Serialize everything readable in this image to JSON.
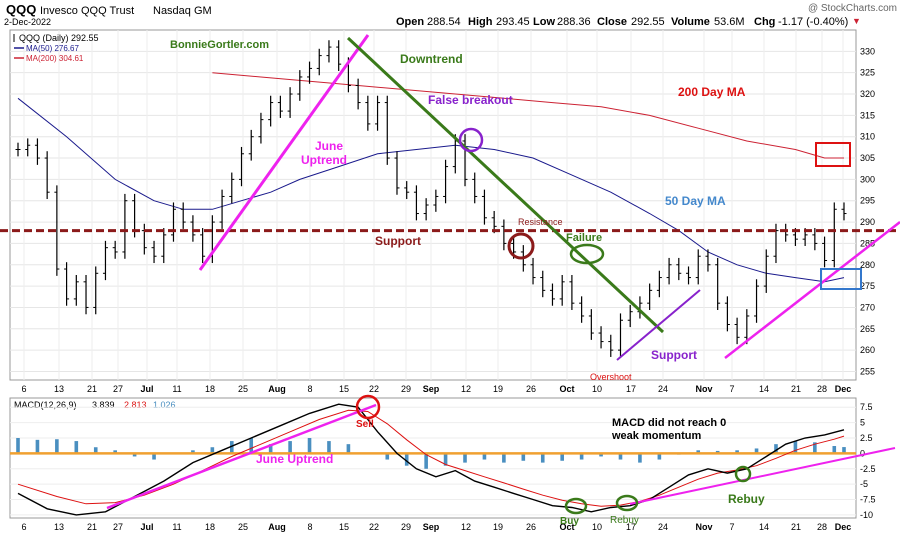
{
  "header": {
    "ticker": "QQQ",
    "name": "Invesco QQQ Trust",
    "exchange": "Nasdaq GM",
    "date": "2-Dec-2022",
    "open_label": "Open",
    "open": "288.54",
    "high_label": "High",
    "high": "293.45",
    "low_label": "Low",
    "low": "288.36",
    "close_label": "Close",
    "close": "292.55",
    "volume_label": "Volume",
    "volume": "53.6M",
    "chg_label": "Chg",
    "chg": "-1.17 (-0.40%)",
    "chg_arrow": "▼",
    "watermark": "@ StockCharts.com"
  },
  "legend": {
    "price": "QQQ (Daily) 292.55",
    "ma50": "MA(50) 276.67",
    "ma200": "MA(200) 304.61"
  },
  "annotations": {
    "brand": "BonnieGortler.com",
    "downtrend": "Downtrend",
    "false_breakout": "False breakout",
    "ma200": "200 Day MA",
    "june_uptrend_1": "June",
    "june_uptrend_2": "Uptrend",
    "ma50": "50 Day MA",
    "resistance": "Resistance",
    "support_left": "Support",
    "failure": "Failure",
    "support_right": "Support",
    "overshoot": "Overshoot",
    "sell": "Sell",
    "macd_note_1": "MACD did not reach 0",
    "macd_note_2": "weak momentum",
    "june_uptrend_macd": "June Uptrend",
    "buy": "Buy",
    "rebuy_1": "Rebuy",
    "rebuy_2": "Rebuy"
  },
  "macd_legend": {
    "name": "MACD(12,26,9)",
    "macd": "3.839",
    "signal": "2.813",
    "hist": "1.026"
  },
  "colors": {
    "price_bar": "#000000",
    "ma50": "#1a1a8c",
    "ma200": "#cc2233",
    "support_resistance": "#8b1a1a",
    "uptrend": "#ee22ee",
    "downtrend": "#3a7a1a",
    "false_breakout": "#8822cc",
    "ma50_label": "#4488cc",
    "ma200_label": "#dd1111",
    "histogram": "#4a8fc0",
    "zero_line": "#f0a030",
    "macd_line": "#000000",
    "signal_line": "#dd1111"
  },
  "chart_data": [
    {
      "type": "line",
      "title": "QQQ Invesco QQQ Trust Nasdaq GM",
      "ylim": [
        253,
        335
      ],
      "y_ticks": [
        255,
        260,
        265,
        270,
        275,
        280,
        285,
        290,
        295,
        300,
        305,
        310,
        315,
        320,
        325,
        330
      ],
      "x_ticks": [
        "6",
        "13",
        "21",
        "27",
        "Jul",
        "11",
        "18",
        "25",
        "Aug",
        "8",
        "15",
        "22",
        "29",
        "Sep",
        "12",
        "19",
        "26",
        "Oct",
        "10",
        "17",
        "24",
        "Nov",
        "7",
        "14",
        "21",
        "28",
        "Dec"
      ],
      "support_resistance_level": 288,
      "series": [
        {
          "name": "QQQ (Daily)",
          "points": [
            [
              0,
              307
            ],
            [
              2,
              308
            ],
            [
              4,
              305
            ],
            [
              6,
              297
            ],
            [
              8,
              279
            ],
            [
              10,
              272
            ],
            [
              12,
              276
            ],
            [
              14,
              270
            ],
            [
              16,
              278
            ],
            [
              18,
              284
            ],
            [
              20,
              283
            ],
            [
              22,
              295
            ],
            [
              24,
              288
            ],
            [
              26,
              284
            ],
            [
              28,
              282
            ],
            [
              30,
              287
            ],
            [
              32,
              293
            ],
            [
              34,
              290
            ],
            [
              36,
              287
            ],
            [
              38,
              282
            ],
            [
              40,
              290
            ],
            [
              42,
              296
            ],
            [
              44,
              300
            ],
            [
              46,
              306
            ],
            [
              48,
              310
            ],
            [
              50,
              314
            ],
            [
              52,
              318
            ],
            [
              54,
              316
            ],
            [
              56,
              320
            ],
            [
              58,
              324
            ],
            [
              60,
              326
            ],
            [
              62,
              329
            ],
            [
              64,
              331
            ],
            [
              66,
              327
            ],
            [
              68,
              322
            ],
            [
              70,
              318
            ],
            [
              72,
              313
            ],
            [
              74,
              318
            ],
            [
              76,
              305
            ],
            [
              78,
              298
            ],
            [
              80,
              297
            ],
            [
              82,
              292
            ],
            [
              84,
              294
            ],
            [
              86,
              296
            ],
            [
              88,
              303
            ],
            [
              90,
              309
            ],
            [
              92,
              300
            ],
            [
              94,
              296
            ],
            [
              96,
              291
            ],
            [
              98,
              289
            ],
            [
              100,
              285
            ],
            [
              102,
              283
            ],
            [
              104,
              280
            ],
            [
              106,
              277
            ],
            [
              108,
              274
            ],
            [
              110,
              272
            ],
            [
              112,
              276
            ],
            [
              114,
              271
            ],
            [
              116,
              268
            ],
            [
              118,
              264
            ],
            [
              120,
              262
            ],
            [
              122,
              260
            ],
            [
              124,
              267
            ],
            [
              126,
              269
            ],
            [
              128,
              271
            ],
            [
              130,
              274
            ],
            [
              132,
              277
            ],
            [
              134,
              280
            ],
            [
              136,
              278
            ],
            [
              138,
              277
            ],
            [
              140,
              282
            ],
            [
              142,
              280
            ],
            [
              144,
              271
            ],
            [
              146,
              266
            ],
            [
              148,
              263
            ],
            [
              150,
              268
            ],
            [
              152,
              275
            ],
            [
              154,
              282
            ],
            [
              156,
              288
            ],
            [
              158,
              287
            ],
            [
              160,
              286
            ],
            [
              162,
              287
            ],
            [
              164,
              285
            ],
            [
              166,
              281
            ],
            [
              168,
              293
            ],
            [
              170,
              292
            ]
          ]
        },
        {
          "name": "MA(50)",
          "points": [
            [
              0,
              319
            ],
            [
              10,
              310
            ],
            [
              20,
              300
            ],
            [
              28,
              295
            ],
            [
              34,
              293
            ],
            [
              40,
              293
            ],
            [
              46,
              295
            ],
            [
              52,
              297
            ],
            [
              58,
              300
            ],
            [
              66,
              303
            ],
            [
              74,
              306
            ],
            [
              82,
              307
            ],
            [
              90,
              308
            ],
            [
              98,
              307
            ],
            [
              106,
              305
            ],
            [
              114,
              301
            ],
            [
              122,
              297
            ],
            [
              130,
              292
            ],
            [
              136,
              288
            ],
            [
              142,
              283
            ],
            [
              148,
              280
            ],
            [
              154,
              278
            ],
            [
              160,
              277
            ],
            [
              166,
              276
            ],
            [
              170,
              277
            ]
          ]
        },
        {
          "name": "MA(200)",
          "points": [
            [
              40,
              325
            ],
            [
              50,
              324
            ],
            [
              60,
              323
            ],
            [
              70,
              322
            ],
            [
              80,
              321
            ],
            [
              90,
              320
            ],
            [
              100,
              319
            ],
            [
              110,
              318
            ],
            [
              120,
              317
            ],
            [
              130,
              315
            ],
            [
              140,
              312
            ],
            [
              150,
              309
            ],
            [
              160,
              307
            ],
            [
              166,
              305
            ],
            [
              170,
              305
            ]
          ]
        }
      ]
    },
    {
      "type": "line",
      "title": "MACD(12,26,9) 3.839, 2.813, 1.026",
      "ylim": [
        -10.5,
        9
      ],
      "y_ticks": [
        -10,
        -7.5,
        -5,
        -2.5,
        0,
        2.5,
        5,
        7.5
      ],
      "x_ticks": [
        "6",
        "13",
        "21",
        "27",
        "Jul",
        "11",
        "18",
        "25",
        "Aug",
        "8",
        "15",
        "22",
        "29",
        "Sep",
        "12",
        "19",
        "26",
        "Oct",
        "10",
        "17",
        "24",
        "Nov",
        "7",
        "14",
        "21",
        "28",
        "Dec"
      ],
      "series": [
        {
          "name": "MACD",
          "points": [
            [
              0,
              -6.5
            ],
            [
              6,
              -9
            ],
            [
              12,
              -10
            ],
            [
              18,
              -9.5
            ],
            [
              24,
              -7
            ],
            [
              30,
              -4.5
            ],
            [
              36,
              -1.5
            ],
            [
              42,
              0.5
            ],
            [
              48,
              2.5
            ],
            [
              54,
              4.5
            ],
            [
              60,
              6.5
            ],
            [
              66,
              8
            ],
            [
              70,
              7.5
            ],
            [
              74,
              3.5
            ],
            [
              78,
              0
            ],
            [
              82,
              -2.5
            ],
            [
              86,
              -3.8
            ],
            [
              90,
              -2.8
            ],
            [
              94,
              -4.5
            ],
            [
              98,
              -5.5
            ],
            [
              102,
              -6.5
            ],
            [
              106,
              -7.5
            ],
            [
              110,
              -8.5
            ],
            [
              114,
              -8.8
            ],
            [
              118,
              -9.5
            ],
            [
              122,
              -8.8
            ],
            [
              126,
              -8.5
            ],
            [
              130,
              -7.5
            ],
            [
              134,
              -5.5
            ],
            [
              138,
              -3.5
            ],
            [
              142,
              -2.5
            ],
            [
              146,
              -3.2
            ],
            [
              150,
              -2.5
            ],
            [
              154,
              -0.5
            ],
            [
              158,
              1.5
            ],
            [
              162,
              2.5
            ],
            [
              166,
              3
            ],
            [
              170,
              3.839
            ]
          ]
        },
        {
          "name": "Signal",
          "points": [
            [
              0,
              -5
            ],
            [
              8,
              -7
            ],
            [
              14,
              -8.2
            ],
            [
              20,
              -8
            ],
            [
              26,
              -6.8
            ],
            [
              32,
              -5
            ],
            [
              38,
              -2.8
            ],
            [
              44,
              -0.5
            ],
            [
              50,
              1.5
            ],
            [
              56,
              3.5
            ],
            [
              62,
              5.5
            ],
            [
              68,
              7
            ],
            [
              72,
              6.8
            ],
            [
              76,
              4.8
            ],
            [
              80,
              2.2
            ],
            [
              84,
              -0.2
            ],
            [
              88,
              -1.8
            ],
            [
              92,
              -2.8
            ],
            [
              96,
              -3.8
            ],
            [
              100,
              -4.8
            ],
            [
              104,
              -5.8
            ],
            [
              108,
              -6.8
            ],
            [
              112,
              -7.6
            ],
            [
              116,
              -8.2
            ],
            [
              120,
              -8.6
            ],
            [
              124,
              -8.4
            ],
            [
              128,
              -7.8
            ],
            [
              132,
              -6.8
            ],
            [
              136,
              -5.5
            ],
            [
              140,
              -4.2
            ],
            [
              144,
              -3.2
            ],
            [
              148,
              -2.7
            ],
            [
              152,
              -2
            ],
            [
              156,
              -0.8
            ],
            [
              160,
              0.5
            ],
            [
              164,
              1.5
            ],
            [
              168,
              2.3
            ],
            [
              170,
              2.813
            ]
          ]
        },
        {
          "name": "Histogram",
          "points": [
            [
              0,
              2.5
            ],
            [
              4,
              2.2
            ],
            [
              8,
              2.3
            ],
            [
              12,
              2
            ],
            [
              16,
              1
            ],
            [
              20,
              0.5
            ],
            [
              24,
              -0.5
            ],
            [
              28,
              -1
            ],
            [
              32,
              0
            ],
            [
              36,
              0.5
            ],
            [
              40,
              1
            ],
            [
              44,
              2
            ],
            [
              48,
              2.5
            ],
            [
              52,
              1.5
            ],
            [
              56,
              2
            ],
            [
              60,
              2.5
            ],
            [
              64,
              2
            ],
            [
              68,
              1.5
            ],
            [
              72,
              0
            ],
            [
              76,
              -1
            ],
            [
              80,
              -2
            ],
            [
              84,
              -2.5
            ],
            [
              88,
              -2
            ],
            [
              92,
              -1.5
            ],
            [
              96,
              -1
            ],
            [
              100,
              -1.5
            ],
            [
              104,
              -1.2
            ],
            [
              108,
              -1.5
            ],
            [
              112,
              -1.2
            ],
            [
              116,
              -1
            ],
            [
              120,
              -0.5
            ],
            [
              124,
              -1
            ],
            [
              128,
              -1.5
            ],
            [
              132,
              -1
            ],
            [
              136,
              -0.2
            ],
            [
              140,
              0.5
            ],
            [
              144,
              0.4
            ],
            [
              148,
              0.5
            ],
            [
              152,
              0.8
            ],
            [
              156,
              1.5
            ],
            [
              160,
              2
            ],
            [
              164,
              1.8
            ],
            [
              168,
              1.2
            ],
            [
              170,
              1.026
            ]
          ]
        }
      ]
    }
  ]
}
